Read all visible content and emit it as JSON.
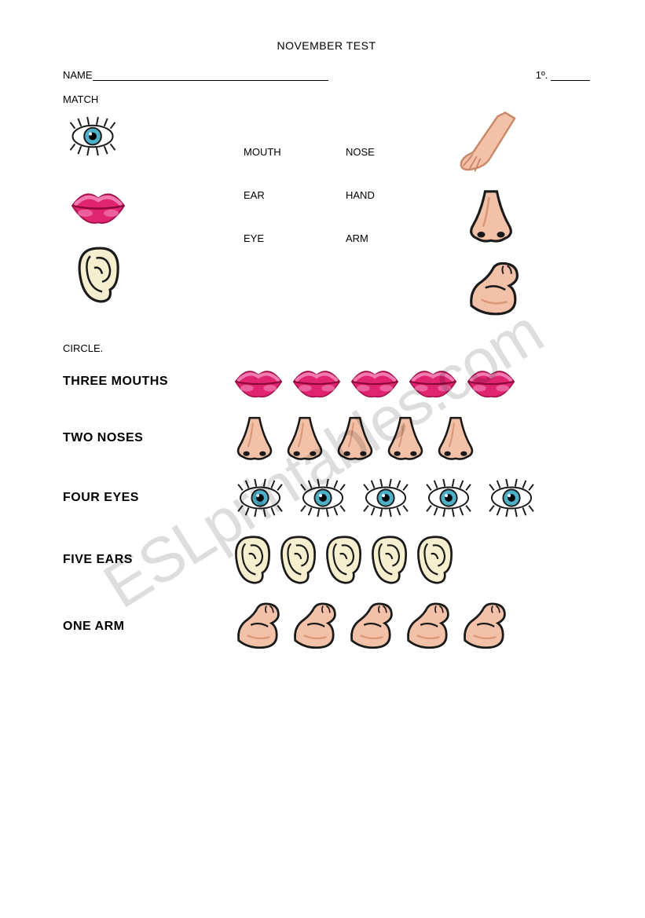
{
  "title": "NOVEMBER TEST",
  "name_label": "NAME",
  "grade_label": "1º.",
  "section_match": "MATCH",
  "section_circle": "CIRCLE.",
  "words": {
    "row1": {
      "a": "MOUTH",
      "b": "NOSE"
    },
    "row2": {
      "a": "EAR",
      "b": "HAND"
    },
    "row3": {
      "a": "EYE",
      "b": "ARM"
    }
  },
  "circle_rows": [
    {
      "label": "THREE MOUTHS",
      "icon": "mouth",
      "count": 5
    },
    {
      "label": "TWO NOSES",
      "icon": "nose",
      "count": 5
    },
    {
      "label": "FOUR EYES",
      "icon": "eye",
      "count": 5
    },
    {
      "label": "FIVE EARS",
      "icon": "ear",
      "count": 5
    },
    {
      "label": "ONE ARM",
      "icon": "arm",
      "count": 5
    }
  ],
  "watermark": "ESLprintables.com",
  "colors": {
    "text": "#000000",
    "bg": "#ffffff",
    "lips": "#e0246f",
    "lips_hl": "#f27ab0",
    "skin": "#f3c0a8",
    "skin_shadow": "#d89878",
    "ear_fill": "#f5efd0",
    "iris": "#4db0c8",
    "pupil": "#000000",
    "outline": "#1a1a1a"
  },
  "font": {
    "body_size": 14,
    "label_size": 16,
    "title_size": 14
  }
}
